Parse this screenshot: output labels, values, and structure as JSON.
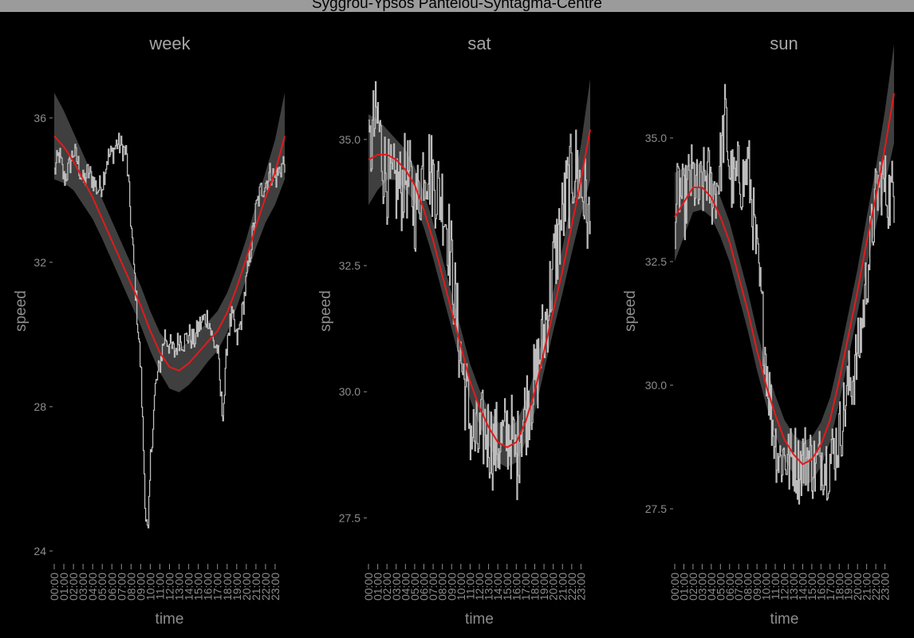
{
  "title": "Syggrou-Ypsos Panteiou-Syntagma-Centre",
  "colors": {
    "background": "#000000",
    "raw_line": "#bdbdbd",
    "smooth_line": "#e41a1c",
    "ribbon": "#4a4a4a",
    "axis_text": "#8c8c8c",
    "panel_title": "#a6a6a6"
  },
  "time_ticks": [
    "00:00",
    "01:00",
    "02:00",
    "03:00",
    "04:00",
    "05:00",
    "06:00",
    "07:00",
    "08:00",
    "09:00",
    "10:00",
    "11:00",
    "12:00",
    "13:00",
    "14:00",
    "15:00",
    "16:00",
    "17:00",
    "18:00",
    "19:00",
    "20:00",
    "21:00",
    "22:00",
    "23:00"
  ],
  "chart_data": [
    {
      "type": "line",
      "title": "week",
      "xlabel": "time",
      "ylabel": "speed",
      "xlim": [
        0,
        24
      ],
      "ylim": [
        23.8,
        37.5
      ],
      "yticks": [
        {
          "v": 24,
          "label": "24"
        },
        {
          "v": 28,
          "label": "28"
        },
        {
          "v": 32,
          "label": "32"
        },
        {
          "v": 36,
          "label": "36"
        }
      ],
      "series": [
        {
          "kind": "raw",
          "noise": 0.35,
          "x": [
            0,
            0.5,
            1,
            1.5,
            2,
            2.5,
            3,
            3.5,
            4,
            4.5,
            5,
            5.5,
            6,
            6.5,
            7,
            7.5,
            8,
            8.5,
            9,
            9.25,
            9.5,
            9.75,
            10,
            10.5,
            11,
            11.5,
            12,
            12.5,
            13,
            13.5,
            14,
            14.5,
            15,
            15.5,
            16,
            16.5,
            17,
            17.25,
            17.5,
            17.75,
            18,
            18.5,
            19,
            19.5,
            20,
            20.5,
            21,
            21.5,
            22,
            22.5,
            23,
            23.5,
            24
          ],
          "y": [
            34.5,
            35,
            34.3,
            34.6,
            35.1,
            34.7,
            34.2,
            34.5,
            34.3,
            34,
            34.2,
            34.9,
            35,
            35.3,
            35.2,
            35,
            33,
            31,
            29,
            27,
            25,
            24.3,
            26.5,
            28.5,
            29.2,
            30,
            29.7,
            29.5,
            29.9,
            29.8,
            30,
            29.8,
            30.2,
            30.4,
            30.5,
            29.8,
            29.6,
            28.5,
            27.8,
            28.5,
            30,
            30.5,
            29.8,
            30.5,
            31.5,
            32.5,
            33.5,
            34,
            34.2,
            34.5,
            34.3,
            34.6,
            34.8
          ]
        },
        {
          "kind": "smooth",
          "x": [
            0,
            1,
            2,
            3,
            4,
            5,
            6,
            7,
            8,
            9,
            10,
            11,
            12,
            13,
            14,
            15,
            16,
            17,
            18,
            19,
            20,
            21,
            22,
            23,
            24
          ],
          "y": [
            35.5,
            35.2,
            34.8,
            34.3,
            33.8,
            33.2,
            32.6,
            32,
            31.4,
            30.8,
            30.1,
            29.5,
            29.1,
            29,
            29.2,
            29.5,
            29.8,
            30.1,
            30.6,
            31.3,
            32.1,
            33,
            33.8,
            34.5,
            35.5
          ],
          "band": [
            1.2,
            1.0,
            0.8,
            0.7,
            0.6,
            0.55,
            0.55,
            0.55,
            0.55,
            0.55,
            0.55,
            0.55,
            0.6,
            0.6,
            0.6,
            0.6,
            0.55,
            0.55,
            0.55,
            0.55,
            0.55,
            0.6,
            0.7,
            0.9,
            1.2
          ]
        }
      ]
    },
    {
      "type": "line",
      "title": "sat",
      "xlabel": "time",
      "ylabel": "speed",
      "xlim": [
        0,
        24
      ],
      "ylim": [
        26.7,
        36.5
      ],
      "yticks": [
        {
          "v": 27.5,
          "label": "27.5"
        },
        {
          "v": 30,
          "label": "30.0"
        },
        {
          "v": 32.5,
          "label": "32.5"
        },
        {
          "v": 35,
          "label": "35.0"
        }
      ],
      "series": [
        {
          "kind": "raw",
          "noise": 0.9,
          "x": [
            0,
            0.5,
            1,
            1.5,
            2,
            2.5,
            3,
            3.5,
            4,
            4.5,
            5,
            5.5,
            6,
            6.5,
            7,
            7.5,
            8,
            8.5,
            9,
            9.5,
            10,
            10.5,
            11,
            11.5,
            12,
            12.5,
            13,
            13.5,
            14,
            14.5,
            15,
            15.5,
            16,
            16.5,
            17,
            17.5,
            18,
            18.5,
            19,
            19.5,
            20,
            20.5,
            21,
            21.5,
            22,
            22.5,
            23,
            23.5,
            24
          ],
          "y": [
            34.5,
            35.2,
            35.4,
            34.6,
            34.2,
            34,
            34.1,
            34,
            34.3,
            34.1,
            33.6,
            34,
            34.6,
            34.5,
            34.2,
            34,
            33.8,
            33.3,
            32.5,
            31.5,
            30.6,
            30,
            29.3,
            29,
            29,
            29.3,
            29.1,
            28.9,
            29,
            29,
            29.2,
            29.1,
            28.6,
            29.4,
            29.6,
            30,
            30.1,
            30.7,
            31.2,
            31.8,
            32.5,
            33,
            33.5,
            34,
            34.3,
            34.5,
            34,
            33.8,
            33
          ]
        },
        {
          "kind": "smooth",
          "x": [
            0,
            1,
            2,
            3,
            4,
            5,
            6,
            7,
            8,
            9,
            10,
            11,
            12,
            13,
            14,
            15,
            16,
            17,
            18,
            19,
            20,
            21,
            22,
            23,
            24
          ],
          "y": [
            34.6,
            34.7,
            34.7,
            34.6,
            34.4,
            34.1,
            33.6,
            33,
            32.3,
            31.6,
            30.9,
            30.2,
            29.7,
            29.3,
            29,
            28.9,
            29,
            29.4,
            30,
            30.8,
            31.6,
            32.4,
            33.3,
            34.2,
            35.2
          ],
          "band": [
            0.9,
            0.7,
            0.5,
            0.4,
            0.4,
            0.35,
            0.35,
            0.35,
            0.35,
            0.35,
            0.35,
            0.35,
            0.35,
            0.35,
            0.4,
            0.4,
            0.4,
            0.4,
            0.4,
            0.4,
            0.4,
            0.45,
            0.55,
            0.7,
            1.0
          ]
        }
      ]
    },
    {
      "type": "line",
      "title": "sun",
      "xlabel": "time",
      "ylabel": "speed",
      "xlim": [
        0,
        24
      ],
      "ylim": [
        26.5,
        36.5
      ],
      "yticks": [
        {
          "v": 27.5,
          "label": "27.5"
        },
        {
          "v": 30,
          "label": "30.0"
        },
        {
          "v": 32.5,
          "label": "32.5"
        },
        {
          "v": 35,
          "label": "35.0"
        }
      ],
      "series": [
        {
          "kind": "raw",
          "noise": 0.75,
          "x": [
            0,
            0.5,
            1,
            1.5,
            2,
            2.5,
            3,
            3.5,
            4,
            4.5,
            5,
            5.5,
            6,
            6.5,
            7,
            7.5,
            8,
            8.5,
            9,
            9.5,
            10,
            10.5,
            11,
            11.5,
            12,
            12.5,
            13,
            13.5,
            14,
            14.5,
            15,
            15.5,
            16,
            16.5,
            17,
            17.5,
            18,
            18.5,
            19,
            19.5,
            20,
            20.5,
            21,
            21.5,
            22,
            22.5,
            23,
            23.5,
            24
          ],
          "y": [
            33.5,
            34,
            33.6,
            34.1,
            34.2,
            33.8,
            34,
            34.3,
            33.9,
            34,
            34.5,
            35.5,
            34.3,
            34,
            34.3,
            34.1,
            34.5,
            33.5,
            32.5,
            31.5,
            30.5,
            29.5,
            28.8,
            28.5,
            28.6,
            28.4,
            28.6,
            28.3,
            28.5,
            28.6,
            28.4,
            28.3,
            28.6,
            28.4,
            28.5,
            28.7,
            29,
            29.5,
            30,
            30.2,
            30.6,
            31.3,
            32.2,
            33,
            33.8,
            34.2,
            34,
            33.8,
            34
          ]
        },
        {
          "kind": "smooth",
          "x": [
            0,
            1,
            2,
            3,
            4,
            5,
            6,
            7,
            8,
            9,
            10,
            11,
            12,
            13,
            14,
            15,
            16,
            17,
            18,
            19,
            20,
            21,
            22,
            23,
            24
          ],
          "y": [
            33.4,
            33.7,
            34,
            34,
            33.8,
            33.4,
            32.9,
            32.2,
            31.5,
            30.7,
            30,
            29.4,
            28.9,
            28.6,
            28.4,
            28.5,
            28.8,
            29.3,
            30.1,
            31,
            31.9,
            32.9,
            33.8,
            34.8,
            35.9
          ],
          "band": [
            0.9,
            0.7,
            0.5,
            0.45,
            0.4,
            0.4,
            0.4,
            0.4,
            0.4,
            0.4,
            0.4,
            0.4,
            0.4,
            0.4,
            0.45,
            0.45,
            0.45,
            0.45,
            0.45,
            0.45,
            0.45,
            0.5,
            0.6,
            0.75,
            1.0
          ]
        }
      ]
    }
  ]
}
